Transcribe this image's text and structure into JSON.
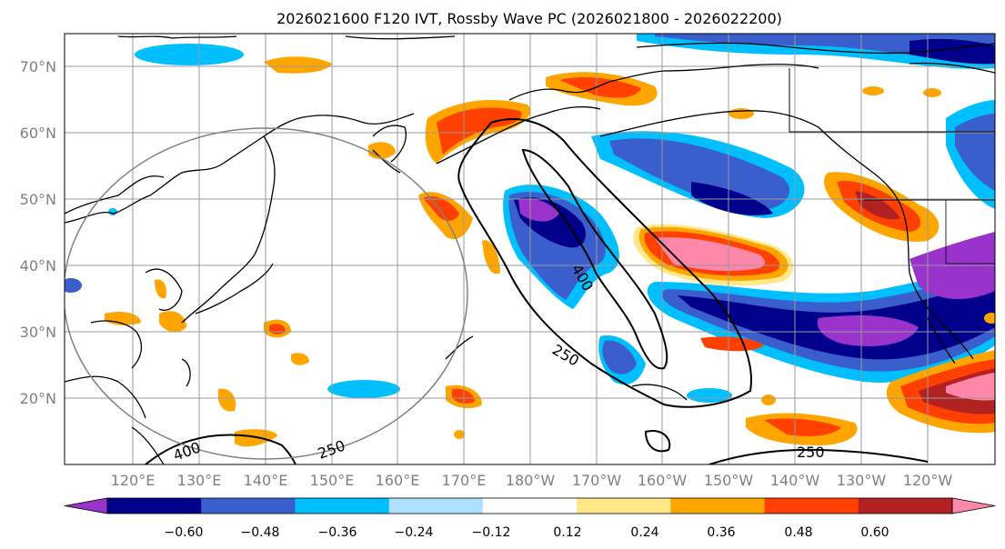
{
  "title": "2026021600 F120 IVT, Rossby Wave PC (2026021800 - 2026022200)",
  "lat_labels": [
    "70°N",
    "60°N",
    "50°N",
    "40°N",
    "30°N",
    "20°N"
  ],
  "lon_labels": [
    "120°E",
    "130°E",
    "140°E",
    "150°E",
    "160°E",
    "170°E",
    "180°W",
    "170°W",
    "160°W",
    "150°W",
    "140°W",
    "130°W",
    "120°W"
  ],
  "colorbar": {
    "ticks": [
      "−0.60",
      "−0.48",
      "−0.36",
      "−0.24",
      "−0.12",
      "0.12",
      "0.24",
      "0.36",
      "0.48",
      "0.60"
    ],
    "colors": [
      "#9933cc",
      "#00008b",
      "#3a5fcd",
      "#00bfff",
      "#b0e0ff",
      "#ffffff",
      "#ffe88a",
      "#ffa500",
      "#ff4000",
      "#b22222",
      "#ff88aa"
    ]
  },
  "contour_labels": [
    "400",
    "250",
    "250",
    "400",
    "250"
  ],
  "colors": {
    "purple": "#9933cc",
    "navy": "#00008b",
    "blue": "#3a5fcd",
    "sky": "#00bfff",
    "pale": "#b0e0ff",
    "yellow": "#ffe88a",
    "orange": "#ffa500",
    "redorange": "#ff4000",
    "firebrick": "#b22222",
    "pink": "#ff88aa"
  }
}
